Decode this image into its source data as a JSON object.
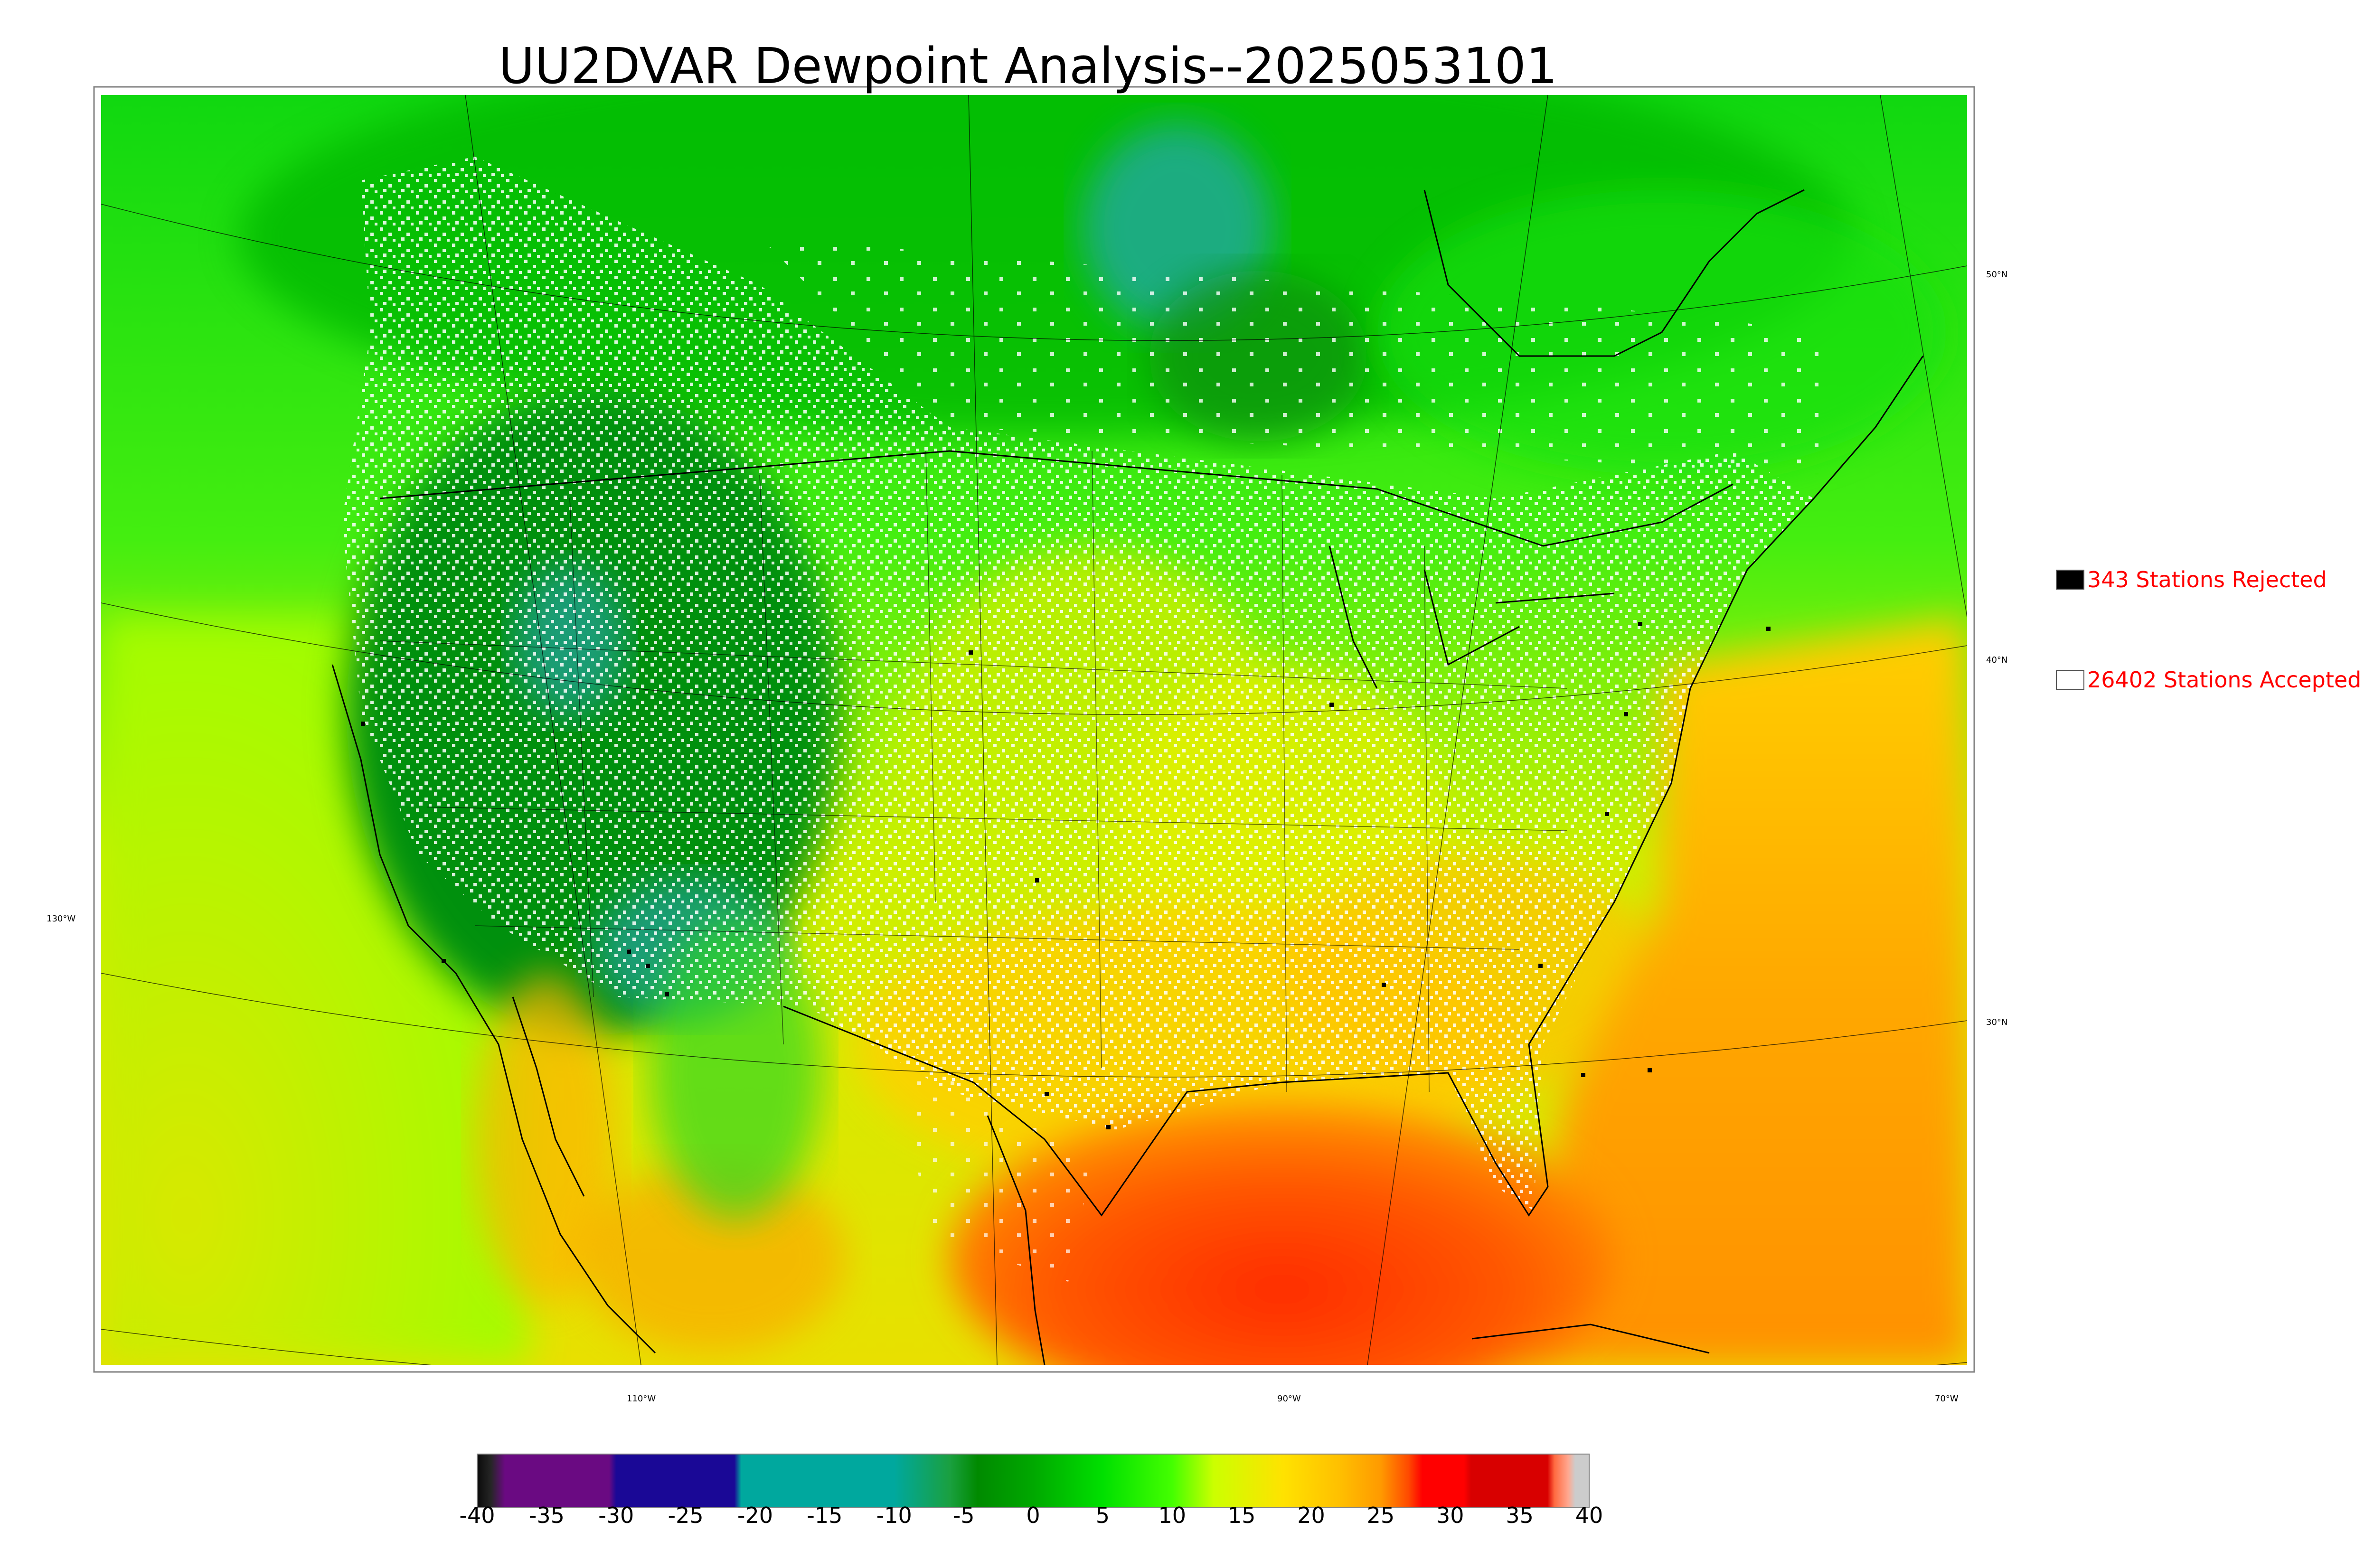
{
  "title": "UU2DVAR Dewpoint Analysis--2025053101",
  "legend": {
    "rejected": {
      "label": "343 Stations Rejected",
      "color": "#000000"
    },
    "accepted": {
      "label": "26402 Stations Accepted",
      "color": "#ffffff"
    }
  },
  "latitude_labels": [
    "50°N",
    "40°N",
    "30°N"
  ],
  "longitude_labels": [
    "130°W",
    "110°W",
    "90°W",
    "70°W"
  ],
  "colorbar": {
    "ticks": [
      "-40",
      "-35",
      "-30",
      "-25",
      "-20",
      "-15",
      "-10",
      "-5",
      "0",
      "5",
      "10",
      "15",
      "20",
      "25",
      "30",
      "35",
      "40"
    ],
    "range": [
      -40,
      40
    ],
    "stops": [
      {
        "v": -40,
        "c": "#0a0a0a"
      },
      {
        "v": -39,
        "c": "#262626"
      },
      {
        "v": -38,
        "c": "#6a0a82"
      },
      {
        "v": -30.5,
        "c": "#6a0a82"
      },
      {
        "v": -30,
        "c": "#1a0896"
      },
      {
        "v": -21.5,
        "c": "#1a0896"
      },
      {
        "v": -21,
        "c": "#00a89e"
      },
      {
        "v": -10,
        "c": "#00a89e"
      },
      {
        "v": -6,
        "c": "#1aa040"
      },
      {
        "v": -4,
        "c": "#008a00"
      },
      {
        "v": 0,
        "c": "#00a800"
      },
      {
        "v": 5,
        "c": "#00e000"
      },
      {
        "v": 10,
        "c": "#44ff00"
      },
      {
        "v": 13,
        "c": "#ccff00"
      },
      {
        "v": 18,
        "c": "#ffe200"
      },
      {
        "v": 22,
        "c": "#ffc000"
      },
      {
        "v": 25,
        "c": "#ff9a00"
      },
      {
        "v": 27,
        "c": "#ff4a00"
      },
      {
        "v": 28,
        "c": "#ff0000"
      },
      {
        "v": 31,
        "c": "#ff0000"
      },
      {
        "v": 31.5,
        "c": "#d80000"
      },
      {
        "v": 37,
        "c": "#d80000"
      },
      {
        "v": 37.5,
        "c": "#ff6a40"
      },
      {
        "v": 38.5,
        "c": "#ffa890"
      },
      {
        "v": 39,
        "c": "#cccccc"
      },
      {
        "v": 40,
        "c": "#cccccc"
      }
    ]
  }
}
